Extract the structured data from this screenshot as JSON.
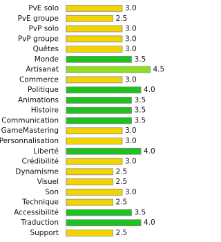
{
  "chart_data": {
    "type": "hbar",
    "categories": [
      "PvE solo",
      "PvE groupe",
      "PvP solo",
      "PvP groupe",
      "Quêtes",
      "Monde",
      "Artisanat",
      "Commerce",
      "Politique",
      "Animations",
      "Histoire",
      "Communication",
      "GameMastering",
      "Personnalisation",
      "Liberté",
      "Crédibilité",
      "Dynamisme",
      "Visuel",
      "Son",
      "Technique",
      "Accessibilité",
      "Traduction",
      "Support"
    ],
    "values": [
      3,
      2.5,
      3,
      3,
      3,
      3.5,
      4.5,
      3,
      4,
      3.5,
      3.5,
      3.5,
      3,
      3,
      4,
      3,
      2.5,
      2.5,
      3,
      2.5,
      3.5,
      4,
      2.5
    ],
    "value_labels": [
      "3.0",
      "2.5",
      "3.0",
      "3.0",
      "3.0",
      "3.5",
      "4.5",
      "3.0",
      "4.0",
      "3.5",
      "3.5",
      "3.5",
      "3.0",
      "3.0",
      "4.0",
      "3.0",
      "2.5",
      "2.5",
      "3.0",
      "2.5",
      "3.5",
      "4.0",
      "2.5"
    ],
    "colors": [
      "#f2d400",
      "#f2d400",
      "#f2d400",
      "#f2d400",
      "#f2d400",
      "#1ec21e",
      "#8ee01e",
      "#f2d400",
      "#1ec21e",
      "#1ec21e",
      "#1ec21e",
      "#1ec21e",
      "#f2d400",
      "#f2d400",
      "#1ec21e",
      "#f2d400",
      "#f2d400",
      "#f2d400",
      "#f2d400",
      "#f2d400",
      "#1ec21e",
      "#1ec21e",
      "#f2d400"
    ],
    "xlim": [
      0,
      5
    ]
  }
}
